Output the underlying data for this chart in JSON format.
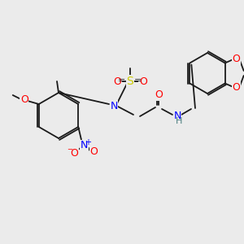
{
  "bg_color": "#ebebeb",
  "bond_color": "#1a1a1a",
  "atom_colors": {
    "N": "#0000ff",
    "O": "#ff0000",
    "S": "#cccc00",
    "H": "#4d8080",
    "C_implicit": "#1a1a1a"
  },
  "font_size_atom": 9,
  "font_size_small": 7,
  "line_width": 1.3
}
